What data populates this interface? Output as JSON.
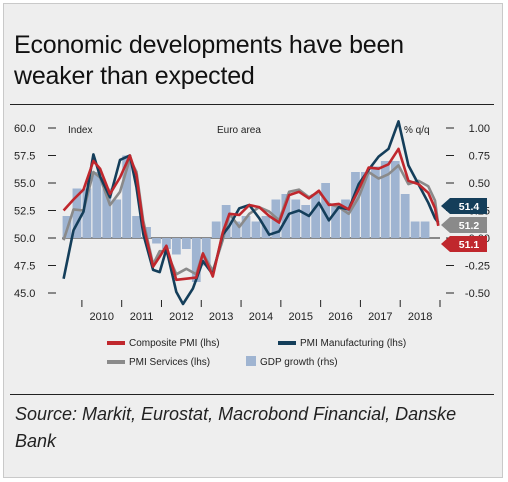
{
  "title": "Economic developments have been weaker than expected",
  "source": "Source: Markit, Eurostat, Macrobond Financial, Danske Bank",
  "colors": {
    "composite": "#c0272d",
    "manufacturing": "#143e5a",
    "services": "#8a8a8a",
    "gdp": "#9fb4d1",
    "background": "#eeeeee"
  },
  "chart_data": {
    "type": "bar+line",
    "left_axis_label": "Index",
    "right_axis_label": "% q/q",
    "region_label": "Euro area",
    "left_ylim": [
      45,
      60
    ],
    "left_ticks": [
      "60.0",
      "57.5",
      "55.0",
      "52.5",
      "50.0",
      "47.5",
      "45.0"
    ],
    "right_ylim": [
      -0.5,
      1.0
    ],
    "right_ticks": [
      "1.00",
      "0.75",
      "0.50",
      "0.25",
      "0.00",
      "-0.25",
      "-0.50"
    ],
    "x_ticks": [
      "2010",
      "2011",
      "2012",
      "2013",
      "2014",
      "2015",
      "2016",
      "2017",
      "2018"
    ],
    "x_range": [
      "2009-07",
      "2018-12"
    ],
    "legend": [
      {
        "key": "composite",
        "label": "Composite PMI (lhs)",
        "kind": "line"
      },
      {
        "key": "manufacturing",
        "label": "PMI Manufacturing (lhs)",
        "kind": "line"
      },
      {
        "key": "services",
        "label": "PMI Services (lhs)",
        "kind": "line"
      },
      {
        "key": "gdp",
        "label": "GDP growth (rhs)",
        "kind": "bar"
      }
    ],
    "gdp_growth": {
      "name": "GDP growth (rhs)",
      "quarters": [
        "2009Q3",
        "2009Q4",
        "2010Q1",
        "2010Q2",
        "2010Q3",
        "2010Q4",
        "2011Q1",
        "2011Q2",
        "2011Q3",
        "2011Q4",
        "2012Q1",
        "2012Q2",
        "2012Q3",
        "2012Q4",
        "2013Q1",
        "2013Q2",
        "2013Q3",
        "2013Q4",
        "2014Q1",
        "2014Q2",
        "2014Q3",
        "2014Q4",
        "2015Q1",
        "2015Q2",
        "2015Q3",
        "2015Q4",
        "2016Q1",
        "2016Q2",
        "2016Q3",
        "2016Q4",
        "2017Q1",
        "2017Q2",
        "2017Q3",
        "2017Q4",
        "2018Q1",
        "2018Q2",
        "2018Q3"
      ],
      "values": [
        0.2,
        0.45,
        0.45,
        0.6,
        0.45,
        0.35,
        0.75,
        0.2,
        0.1,
        -0.05,
        -0.1,
        -0.15,
        -0.1,
        -0.4,
        -0.25,
        0.15,
        0.3,
        0.15,
        0.2,
        0.15,
        0.2,
        0.35,
        0.4,
        0.35,
        0.3,
        0.4,
        0.5,
        0.3,
        0.35,
        0.6,
        0.6,
        0.65,
        0.7,
        0.7,
        0.4,
        0.15,
        0.15
      ]
    },
    "series": [
      {
        "name": "Composite PMI (lhs)",
        "key": "composite",
        "points": [
          [
            "2009-07",
            52.5
          ],
          [
            "2009-10",
            53.5
          ],
          [
            "2010-01",
            54.4
          ],
          [
            "2010-04",
            57.0
          ],
          [
            "2010-06",
            56.3
          ],
          [
            "2010-09",
            54.0
          ],
          [
            "2010-12",
            55.5
          ],
          [
            "2011-03",
            57.5
          ],
          [
            "2011-05",
            55.7
          ],
          [
            "2011-07",
            51.2
          ],
          [
            "2011-10",
            47.4
          ],
          [
            "2011-12",
            48.3
          ],
          [
            "2012-02",
            49.3
          ],
          [
            "2012-05",
            46.2
          ],
          [
            "2012-08",
            46.3
          ],
          [
            "2012-11",
            46.4
          ],
          [
            "2013-01",
            48.6
          ],
          [
            "2013-04",
            46.5
          ],
          [
            "2013-07",
            50.5
          ],
          [
            "2013-09",
            52.2
          ],
          [
            "2013-12",
            52.1
          ],
          [
            "2014-03",
            53.0
          ],
          [
            "2014-06",
            52.8
          ],
          [
            "2014-09",
            52.0
          ],
          [
            "2014-12",
            51.4
          ],
          [
            "2015-03",
            53.9
          ],
          [
            "2015-06",
            54.2
          ],
          [
            "2015-09",
            53.6
          ],
          [
            "2015-12",
            54.3
          ],
          [
            "2016-03",
            53.0
          ],
          [
            "2016-06",
            53.1
          ],
          [
            "2016-09",
            52.6
          ],
          [
            "2016-12",
            54.4
          ],
          [
            "2017-03",
            56.4
          ],
          [
            "2017-06",
            56.3
          ],
          [
            "2017-09",
            56.7
          ],
          [
            "2017-12",
            58.1
          ],
          [
            "2018-03",
            55.2
          ],
          [
            "2018-06",
            54.9
          ],
          [
            "2018-09",
            54.1
          ],
          [
            "2018-11",
            52.7
          ],
          [
            "2018-12",
            51.1
          ]
        ],
        "end_value": "51.1"
      },
      {
        "name": "PMI Manufacturing (lhs)",
        "key": "manufacturing",
        "points": [
          [
            "2009-07",
            46.3
          ],
          [
            "2009-10",
            50.7
          ],
          [
            "2010-01",
            52.4
          ],
          [
            "2010-04",
            57.6
          ],
          [
            "2010-06",
            55.6
          ],
          [
            "2010-09",
            53.7
          ],
          [
            "2010-12",
            57.1
          ],
          [
            "2011-03",
            57.5
          ],
          [
            "2011-05",
            54.6
          ],
          [
            "2011-07",
            50.4
          ],
          [
            "2011-10",
            47.1
          ],
          [
            "2011-12",
            46.9
          ],
          [
            "2012-02",
            49.0
          ],
          [
            "2012-05",
            45.1
          ],
          [
            "2012-07",
            44.0
          ],
          [
            "2012-10",
            45.4
          ],
          [
            "2013-01",
            47.9
          ],
          [
            "2013-04",
            46.7
          ],
          [
            "2013-07",
            50.3
          ],
          [
            "2013-09",
            51.1
          ],
          [
            "2013-12",
            52.7
          ],
          [
            "2014-03",
            53.0
          ],
          [
            "2014-06",
            51.8
          ],
          [
            "2014-09",
            50.3
          ],
          [
            "2014-12",
            50.6
          ],
          [
            "2015-03",
            52.2
          ],
          [
            "2015-06",
            52.5
          ],
          [
            "2015-09",
            52.0
          ],
          [
            "2015-12",
            53.2
          ],
          [
            "2016-03",
            51.6
          ],
          [
            "2016-06",
            52.8
          ],
          [
            "2016-09",
            52.6
          ],
          [
            "2016-12",
            54.9
          ],
          [
            "2017-03",
            56.2
          ],
          [
            "2017-06",
            57.4
          ],
          [
            "2017-09",
            58.1
          ],
          [
            "2017-12",
            60.6
          ],
          [
            "2018-03",
            56.6
          ],
          [
            "2018-06",
            54.9
          ],
          [
            "2018-09",
            53.2
          ],
          [
            "2018-11",
            51.8
          ],
          [
            "2018-12",
            51.4
          ]
        ],
        "end_value": "51.4"
      },
      {
        "name": "PMI Services (lhs)",
        "key": "services",
        "points": [
          [
            "2009-07",
            49.8
          ],
          [
            "2009-10",
            52.6
          ],
          [
            "2010-01",
            52.5
          ],
          [
            "2010-04",
            56.0
          ],
          [
            "2010-06",
            55.5
          ],
          [
            "2010-09",
            53.0
          ],
          [
            "2010-12",
            54.2
          ],
          [
            "2011-03",
            57.2
          ],
          [
            "2011-05",
            56.0
          ],
          [
            "2011-07",
            51.6
          ],
          [
            "2011-10",
            47.6
          ],
          [
            "2011-12",
            48.8
          ],
          [
            "2012-02",
            48.8
          ],
          [
            "2012-05",
            46.7
          ],
          [
            "2012-08",
            47.2
          ],
          [
            "2012-11",
            46.7
          ],
          [
            "2013-01",
            48.6
          ],
          [
            "2013-04",
            47.0
          ],
          [
            "2013-07",
            49.8
          ],
          [
            "2013-09",
            52.2
          ],
          [
            "2013-12",
            51.0
          ],
          [
            "2014-03",
            52.2
          ],
          [
            "2014-06",
            52.8
          ],
          [
            "2014-09",
            52.4
          ],
          [
            "2014-12",
            51.6
          ],
          [
            "2015-03",
            54.2
          ],
          [
            "2015-06",
            54.4
          ],
          [
            "2015-09",
            53.7
          ],
          [
            "2015-12",
            54.2
          ],
          [
            "2016-03",
            53.1
          ],
          [
            "2016-06",
            52.8
          ],
          [
            "2016-09",
            52.2
          ],
          [
            "2016-12",
            53.7
          ],
          [
            "2017-03",
            56.0
          ],
          [
            "2017-06",
            55.4
          ],
          [
            "2017-09",
            55.8
          ],
          [
            "2017-12",
            56.6
          ],
          [
            "2018-03",
            54.9
          ],
          [
            "2018-06",
            55.2
          ],
          [
            "2018-09",
            54.7
          ],
          [
            "2018-11",
            53.4
          ],
          [
            "2018-12",
            51.2
          ]
        ],
        "end_value": "51.2"
      }
    ]
  }
}
